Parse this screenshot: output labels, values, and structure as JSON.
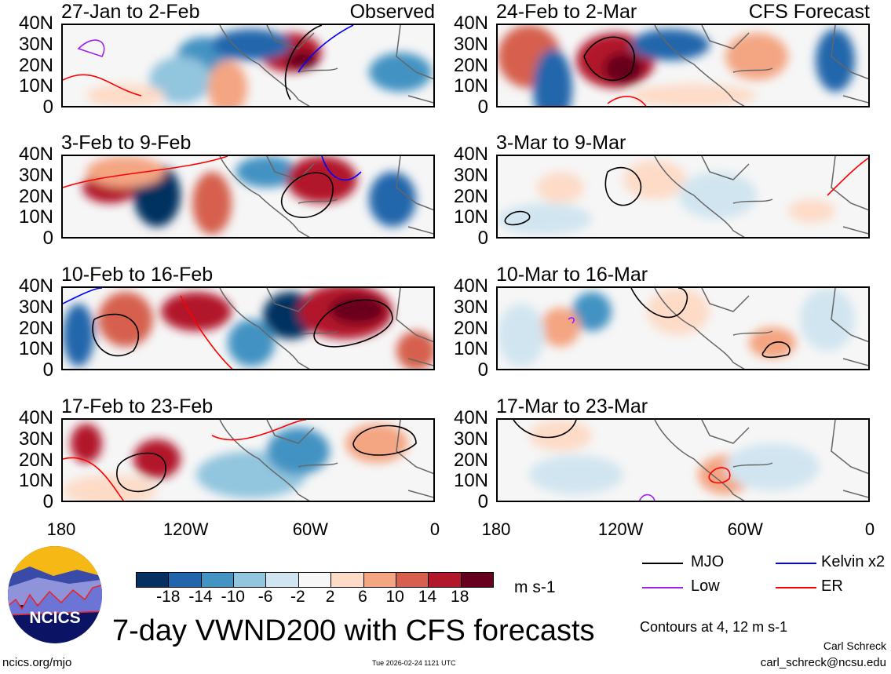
{
  "panels": [
    {
      "title": "27-Jan to 2-Feb",
      "label": "Observed"
    },
    {
      "title": "24-Feb to 2-Mar",
      "label": "CFS Forecast"
    },
    {
      "title": "3-Feb to 9-Feb"
    },
    {
      "title": "3-Mar to 9-Mar"
    },
    {
      "title": "10-Feb to 16-Feb"
    },
    {
      "title": "10-Mar to 16-Mar"
    },
    {
      "title": "17-Feb to 23-Feb"
    },
    {
      "title": "17-Mar to 23-Mar"
    }
  ],
  "y_ticks": [
    "40N",
    "30N",
    "20N",
    "10N",
    "0"
  ],
  "x_ticks": [
    "180",
    "120W",
    "60W",
    "0"
  ],
  "colorbar": {
    "colors": [
      "#053061",
      "#2166ac",
      "#4393c3",
      "#92c5de",
      "#d1e5f0",
      "#f7f7f7",
      "#fddbc7",
      "#f4a582",
      "#d6604d",
      "#b2182b",
      "#67001f"
    ],
    "labels": [
      "-18",
      "-14",
      "-10",
      "-6",
      "-2",
      "2",
      "6",
      "10",
      "14",
      "18"
    ],
    "units": "m s-1"
  },
  "legend": [
    {
      "label": "MJO",
      "color": "#000000"
    },
    {
      "label": "Kelvin x2",
      "color": "#0000ff"
    },
    {
      "label": "Low",
      "color": "#a020f0"
    },
    {
      "label": "ER",
      "color": "#ff0000"
    }
  ],
  "contours_note": "Contours at 4, 12 m s-1",
  "main_title": "7-day VWND200 with CFS forecasts",
  "logo_text": "NCICS",
  "footer": {
    "url": "ncics.org/mjo",
    "timestamp": "Tue 2026-02-24 1121 UTC",
    "author": "Carl Schreck",
    "email": "carl_schreck@ncsu.edu"
  }
}
